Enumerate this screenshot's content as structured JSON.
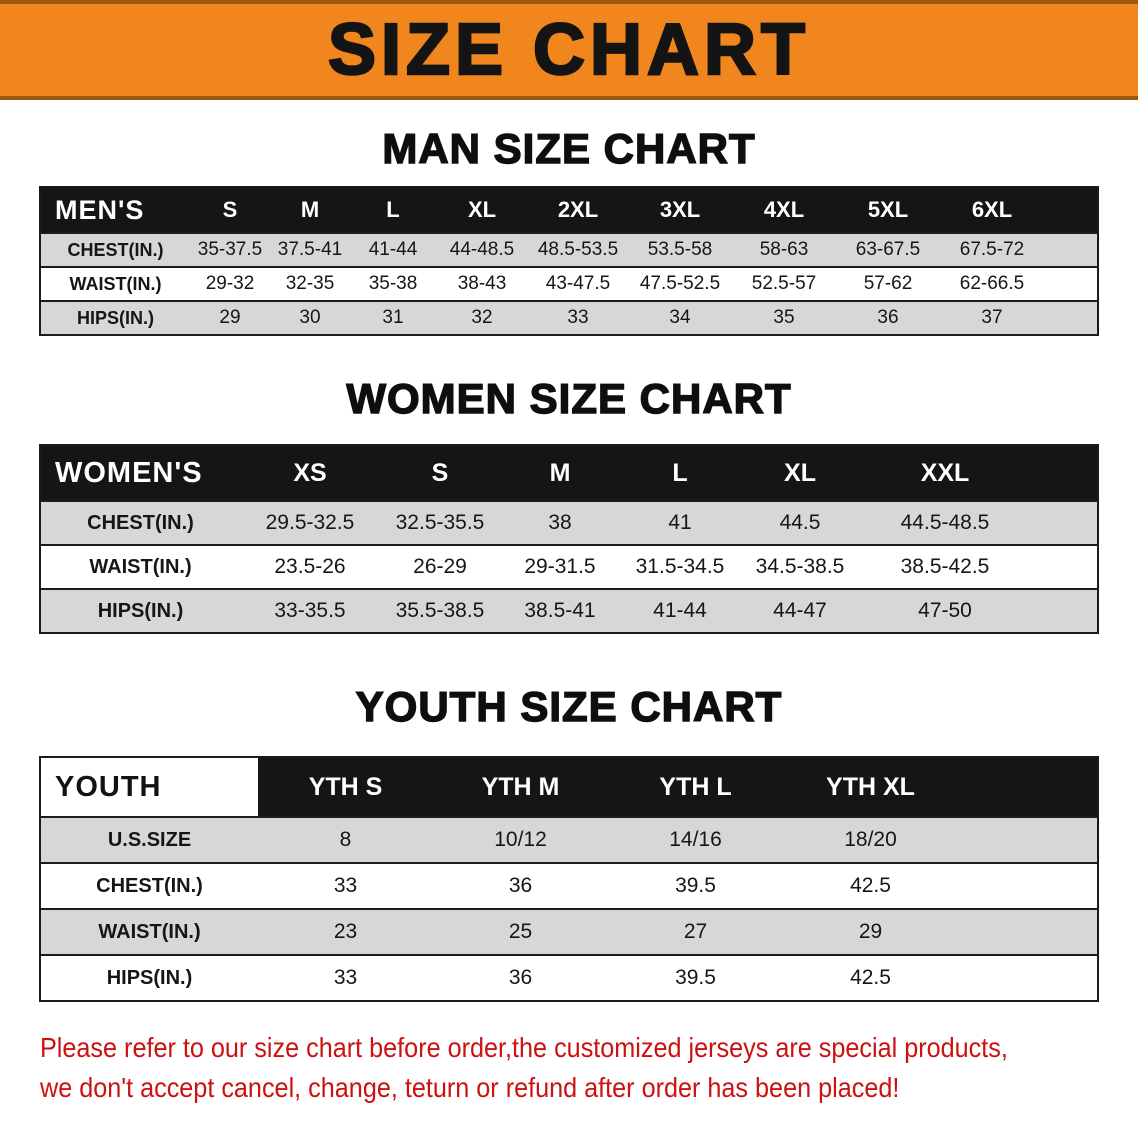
{
  "banner": {
    "title": "SIZE CHART"
  },
  "colors": {
    "banner_orange": "#F0861D",
    "header_black": "#151515",
    "row_gray": "#D7D7D7",
    "note_red": "#CC1111"
  },
  "sections": [
    {
      "id": "men",
      "heading": "MAN SIZE CHART",
      "header_label": "MEN'S",
      "header_label_light": false,
      "columns": [
        "S",
        "M",
        "L",
        "XL",
        "2XL",
        "3XL",
        "4XL",
        "5XL",
        "6XL"
      ],
      "rows": [
        {
          "label": "CHEST(IN.)",
          "values": [
            "35-37.5",
            "37.5-41",
            "41-44",
            "44-48.5",
            "48.5-53.5",
            "53.5-58",
            "58-63",
            "63-67.5",
            "67.5-72"
          ]
        },
        {
          "label": "WAIST(IN.)",
          "values": [
            "29-32",
            "32-35",
            "35-38",
            "38-43",
            "43-47.5",
            "47.5-52.5",
            "52.5-57",
            "57-62",
            "62-66.5"
          ]
        },
        {
          "label": "HIPS(IN.)",
          "values": [
            "29",
            "30",
            "31",
            "32",
            "33",
            "34",
            "35",
            "36",
            "37"
          ]
        }
      ]
    },
    {
      "id": "women",
      "heading": "WOMEN SIZE CHART",
      "header_label": "WOMEN'S",
      "header_label_light": false,
      "columns": [
        "XS",
        "S",
        "M",
        "L",
        "XL",
        "XXL"
      ],
      "rows": [
        {
          "label": "CHEST(IN.)",
          "values": [
            "29.5-32.5",
            "32.5-35.5",
            "38",
            "41",
            "44.5",
            "44.5-48.5"
          ]
        },
        {
          "label": "WAIST(IN.)",
          "values": [
            "23.5-26",
            "26-29",
            "29-31.5",
            "31.5-34.5",
            "34.5-38.5",
            "38.5-42.5"
          ]
        },
        {
          "label": "HIPS(IN.)",
          "values": [
            "33-35.5",
            "35.5-38.5",
            "38.5-41",
            "41-44",
            "44-47",
            "47-50"
          ]
        }
      ]
    },
    {
      "id": "youth",
      "heading": "YOUTH SIZE CHART",
      "header_label": "YOUTH",
      "header_label_light": true,
      "columns": [
        "YTH S",
        "YTH M",
        "YTH L",
        "YTH XL"
      ],
      "rows": [
        {
          "label": "U.S.SIZE",
          "values": [
            "8",
            "10/12",
            "14/16",
            "18/20"
          ]
        },
        {
          "label": "CHEST(IN.)",
          "values": [
            "33",
            "36",
            "39.5",
            "42.5"
          ]
        },
        {
          "label": "WAIST(IN.)",
          "values": [
            "23",
            "25",
            "27",
            "29"
          ]
        },
        {
          "label": "HIPS(IN.)",
          "values": [
            "33",
            "36",
            "39.5",
            "42.5"
          ]
        }
      ]
    }
  ],
  "footer": {
    "line1": "Please refer to our size chart before order,the customized jerseys are special products,",
    "line2": "we don't accept cancel, change, teturn or refund after order has been placed!"
  }
}
